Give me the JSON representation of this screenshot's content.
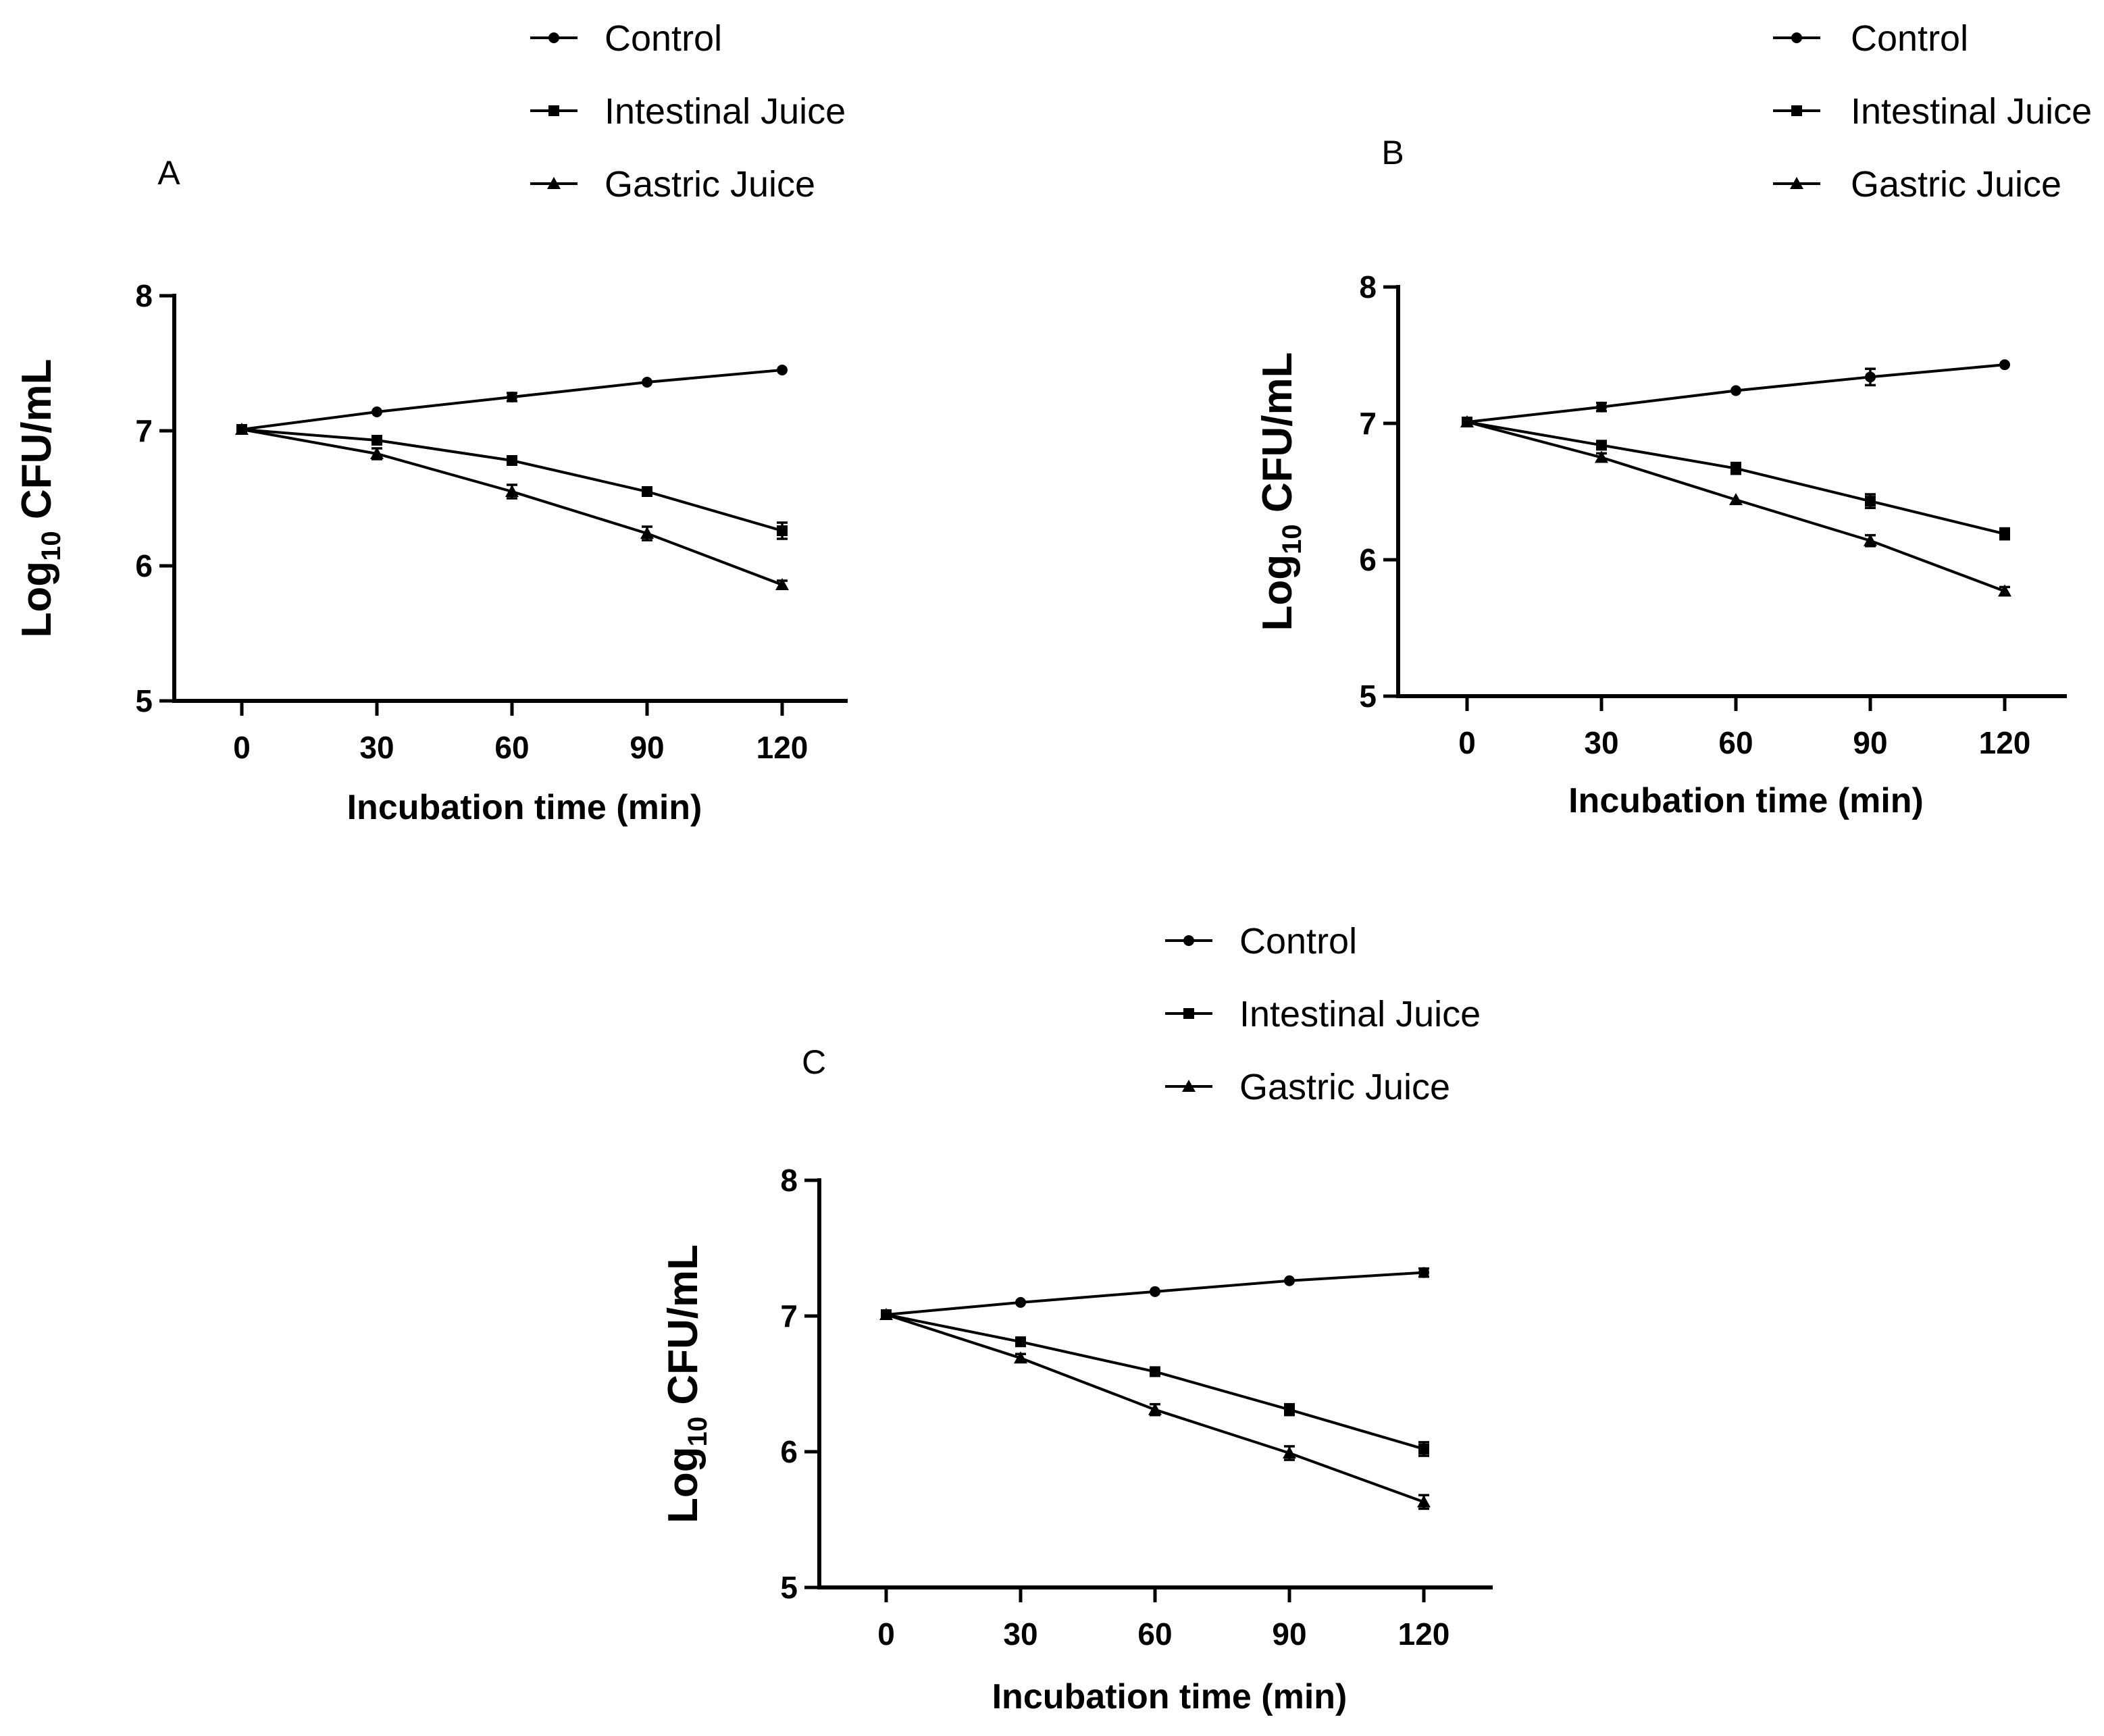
{
  "chart_data": [
    {
      "type": "line",
      "panel_label": "A",
      "x": [
        0,
        30,
        60,
        90,
        120
      ],
      "xticks": [
        "0",
        "30",
        "60",
        "90",
        "120"
      ],
      "yticks": [
        "5",
        "6",
        "7",
        "8"
      ],
      "xlim": [
        -15,
        135
      ],
      "ylim": [
        5,
        8
      ],
      "xlabel": "Incubation time (min)",
      "ylabel_main": "Log",
      "ylabel_sub": "10",
      "ylabel_rest": " CFU/mL",
      "legend_position": "top",
      "series": [
        {
          "name": "Control",
          "marker": "circle",
          "values": [
            7.01,
            7.14,
            7.25,
            7.36,
            7.45
          ],
          "errors": [
            0.02,
            0.02,
            0.03,
            0.02,
            0.02
          ]
        },
        {
          "name": "Intestinal Juice",
          "marker": "square",
          "values": [
            7.01,
            6.93,
            6.78,
            6.55,
            6.26
          ],
          "errors": [
            0.02,
            0.03,
            0.03,
            0.03,
            0.06
          ]
        },
        {
          "name": "Gastric Juice",
          "marker": "triangle",
          "values": [
            7.01,
            6.83,
            6.55,
            6.24,
            5.86
          ],
          "errors": [
            0.02,
            0.04,
            0.05,
            0.05,
            0.03
          ]
        }
      ]
    },
    {
      "type": "line",
      "panel_label": "B",
      "x": [
        0,
        30,
        60,
        90,
        120
      ],
      "xticks": [
        "0",
        "30",
        "60",
        "90",
        "120"
      ],
      "yticks": [
        "5",
        "6",
        "7",
        "8"
      ],
      "xlim": [
        -15,
        135
      ],
      "ylim": [
        5,
        8
      ],
      "xlabel": "Incubation time (min)",
      "ylabel_main": "Log",
      "ylabel_sub": "10",
      "ylabel_rest": " CFU/mL",
      "legend_position": "top-right",
      "series": [
        {
          "name": "Control",
          "marker": "circle",
          "values": [
            7.01,
            7.12,
            7.24,
            7.34,
            7.43
          ],
          "errors": [
            0.02,
            0.03,
            0.02,
            0.06,
            0.02
          ]
        },
        {
          "name": "Intestinal Juice",
          "marker": "square",
          "values": [
            7.01,
            6.84,
            6.67,
            6.43,
            6.19
          ],
          "errors": [
            0.02,
            0.03,
            0.04,
            0.05,
            0.04
          ]
        },
        {
          "name": "Gastric Juice",
          "marker": "triangle",
          "values": [
            7.01,
            6.75,
            6.44,
            6.14,
            5.77
          ],
          "errors": [
            0.02,
            0.03,
            0.02,
            0.04,
            0.03
          ]
        }
      ]
    },
    {
      "type": "line",
      "panel_label": "C",
      "x": [
        0,
        30,
        60,
        90,
        120
      ],
      "xticks": [
        "0",
        "30",
        "60",
        "90",
        "120"
      ],
      "yticks": [
        "5",
        "6",
        "7",
        "8"
      ],
      "xlim": [
        -15,
        135
      ],
      "ylim": [
        5,
        8
      ],
      "xlabel": "Incubation time (min)",
      "ylabel_main": "Log",
      "ylabel_sub": "10",
      "ylabel_rest": " CFU/mL",
      "legend_position": "top",
      "series": [
        {
          "name": "Control",
          "marker": "circle",
          "values": [
            7.01,
            7.1,
            7.18,
            7.26,
            7.32
          ],
          "errors": [
            0.02,
            0.02,
            0.02,
            0.02,
            0.03
          ]
        },
        {
          "name": "Intestinal Juice",
          "marker": "square",
          "values": [
            7.01,
            6.81,
            6.59,
            6.31,
            6.02
          ],
          "errors": [
            0.02,
            0.03,
            0.03,
            0.04,
            0.05
          ]
        },
        {
          "name": "Gastric Juice",
          "marker": "triangle",
          "values": [
            7.01,
            6.69,
            6.31,
            5.99,
            5.63
          ],
          "errors": [
            0.02,
            0.03,
            0.04,
            0.05,
            0.05
          ]
        }
      ]
    }
  ]
}
